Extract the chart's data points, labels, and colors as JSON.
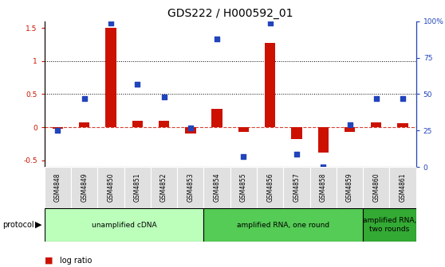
{
  "title": "GDS222 / H000592_01",
  "samples": [
    "GSM4848",
    "GSM4849",
    "GSM4850",
    "GSM4851",
    "GSM4852",
    "GSM4853",
    "GSM4854",
    "GSM4855",
    "GSM4856",
    "GSM4857",
    "GSM4858",
    "GSM4859",
    "GSM4860",
    "GSM4861"
  ],
  "log_ratio": [
    -0.02,
    0.07,
    1.5,
    0.1,
    0.1,
    -0.09,
    0.28,
    -0.07,
    1.27,
    -0.18,
    -0.38,
    -0.07,
    0.07,
    0.06
  ],
  "percentile_right": [
    25,
    47,
    99,
    57,
    48,
    27,
    88,
    7,
    99,
    9,
    0,
    29,
    47,
    47
  ],
  "protocols": [
    {
      "label": "unamplified cDNA",
      "start": 0,
      "end": 5,
      "color": "#bbffbb"
    },
    {
      "label": "amplified RNA, one round",
      "start": 6,
      "end": 11,
      "color": "#55cc55"
    },
    {
      "label": "amplified RNA,\ntwo rounds",
      "start": 12,
      "end": 13,
      "color": "#33aa33"
    }
  ],
  "bar_color": "#cc1100",
  "dot_color": "#2244bb",
  "ylim_left": [
    -0.6,
    1.6
  ],
  "ylim_right": [
    0,
    100
  ],
  "yticks_left": [
    -0.5,
    0.0,
    0.5,
    1.0,
    1.5
  ],
  "yticks_right": [
    0,
    25,
    50,
    75,
    100
  ],
  "hlines": [
    0.5,
    1.0
  ],
  "bg_color": "#ffffff",
  "tick_fontsize": 6.5,
  "title_fontsize": 10,
  "sample_fontsize": 5.5,
  "proto_fontsize": 6.5,
  "legend_fontsize": 7
}
